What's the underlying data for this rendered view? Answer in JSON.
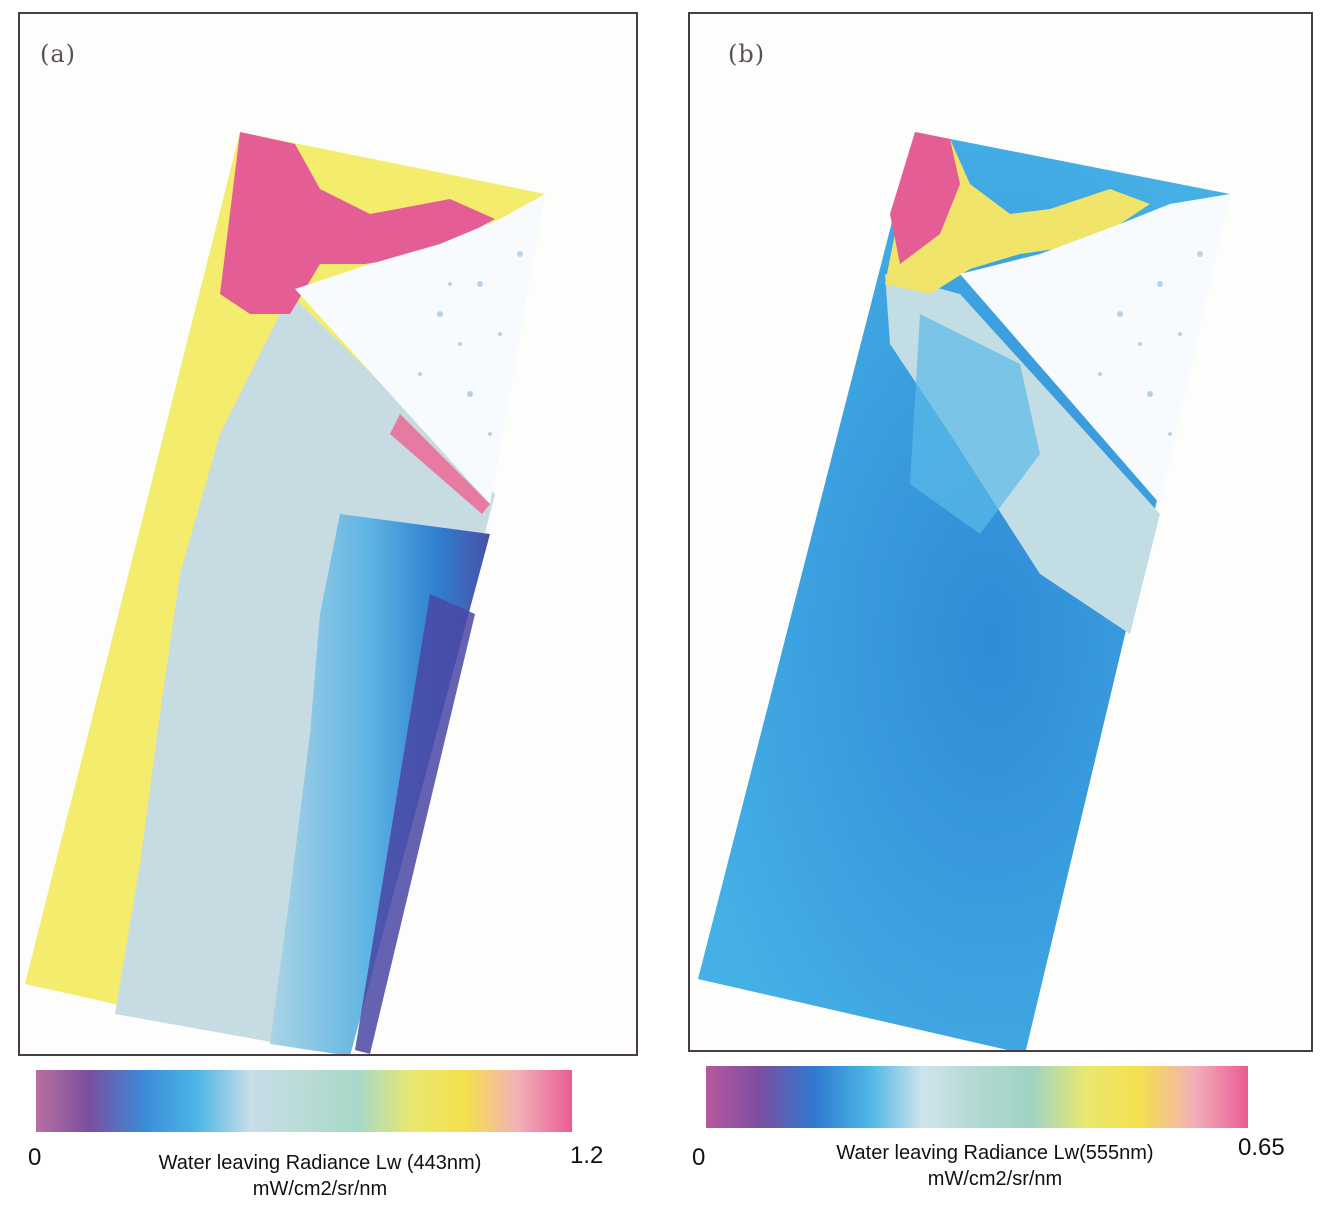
{
  "panels": [
    {
      "label": "(a)",
      "colorbar": {
        "min": "0",
        "max": "1.2",
        "title": "Water leaving Radiance Lw (443nm)",
        "units": "mW/cm2/sr/nm",
        "colors": [
          "#b76fa0",
          "#7a4fa0",
          "#3c8ad8",
          "#4bb6e6",
          "#c8dde8",
          "#b9dcd6",
          "#a7d8c8",
          "#e8e870",
          "#f5e04e",
          "#f2b0b8",
          "#ea5c94"
        ]
      }
    },
    {
      "label": "(b)",
      "colorbar": {
        "min": "0",
        "max": "0.65",
        "title": "Water leaving Radiance Lw(555nm)",
        "units": "mW/cm2/sr/nm",
        "colors": [
          "#b8579e",
          "#7a4fa0",
          "#2f7ad0",
          "#4bb6e6",
          "#cfe4ec",
          "#b3d9d2",
          "#9fd3c4",
          "#e8e870",
          "#f5e04e",
          "#f2b0b8",
          "#ea5c94"
        ]
      }
    }
  ]
}
